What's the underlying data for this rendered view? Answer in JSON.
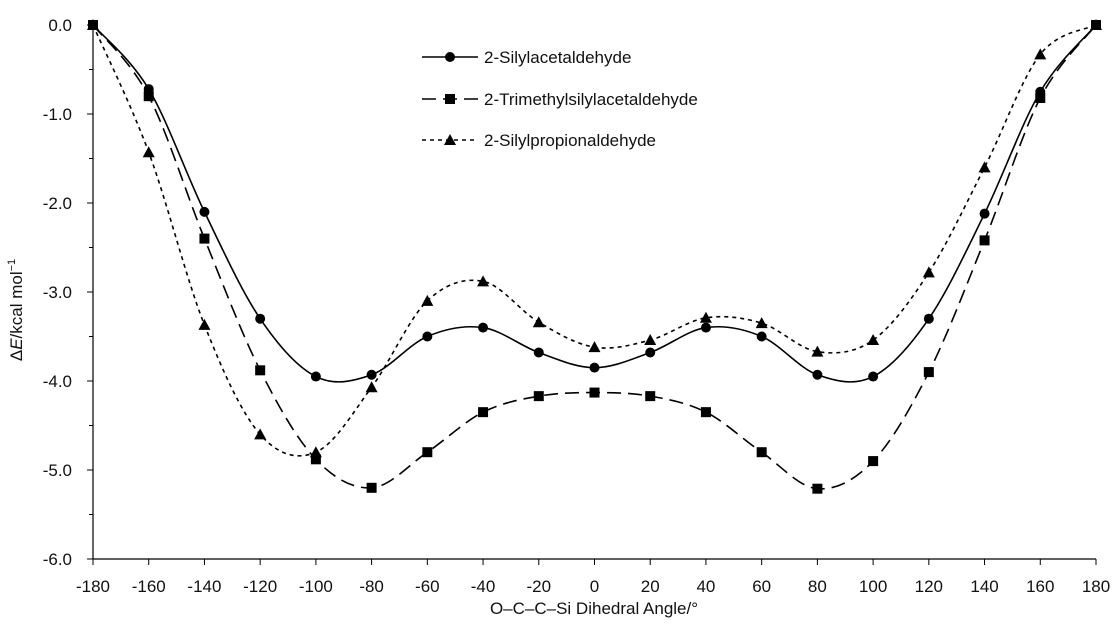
{
  "chart_data": {
    "type": "line",
    "xlabel": "O–C–C–Si Dihedral Angle/°",
    "ylabel_prefix": "Δ",
    "ylabel_var": "E",
    "ylabel_unit": "/kcal mol",
    "ylabel_sup": "−1",
    "xlim": [
      -180,
      180
    ],
    "ylim": [
      -6.0,
      0.0
    ],
    "x_ticks": [
      -180,
      -160,
      -140,
      -120,
      -100,
      -80,
      -60,
      -40,
      -20,
      0,
      20,
      40,
      60,
      80,
      100,
      120,
      140,
      160,
      180
    ],
    "y_ticks": [
      0.0,
      -1.0,
      -2.0,
      -3.0,
      -4.0,
      -5.0,
      -6.0
    ],
    "grid": false,
    "legend_position": "top-center",
    "x": [
      -180,
      -160,
      -140,
      -120,
      -100,
      -80,
      -60,
      -40,
      -20,
      0,
      20,
      40,
      60,
      80,
      100,
      120,
      140,
      160,
      180
    ],
    "series": [
      {
        "name": "2-Silylacetaldehyde",
        "marker": "circle",
        "dash": "solid",
        "values": [
          0.0,
          -0.72,
          -2.1,
          -3.3,
          -3.95,
          -3.93,
          -3.5,
          -3.4,
          -3.68,
          -3.85,
          -3.68,
          -3.4,
          -3.5,
          -3.93,
          -3.95,
          -3.3,
          -2.12,
          -0.75,
          0.0
        ]
      },
      {
        "name": "2-Trimethylsilylacetaldehyde",
        "marker": "square",
        "dash": "long",
        "values": [
          0.0,
          -0.8,
          -2.4,
          -3.88,
          -4.88,
          -5.2,
          -4.8,
          -4.35,
          -4.17,
          -4.13,
          -4.17,
          -4.35,
          -4.8,
          -5.21,
          -4.9,
          -3.9,
          -2.42,
          -0.82,
          0.0
        ]
      },
      {
        "name": "2-Silylpropionaldehyde",
        "marker": "triangle",
        "dash": "short",
        "values": [
          0.0,
          -1.43,
          -3.37,
          -4.6,
          -4.8,
          -4.07,
          -3.1,
          -2.88,
          -3.34,
          -3.62,
          -3.54,
          -3.29,
          -3.35,
          -3.67,
          -3.54,
          -2.78,
          -1.6,
          -0.33,
          0.0
        ]
      }
    ]
  }
}
